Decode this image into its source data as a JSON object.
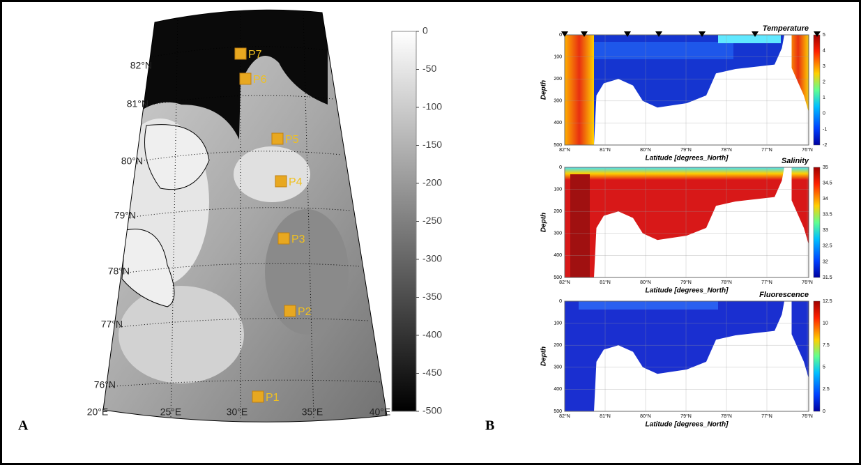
{
  "panel_a": {
    "label": "A",
    "lat_labels": [
      "82°N",
      "81°N",
      "80°N",
      "79°N",
      "78°N",
      "77°N",
      "76°N"
    ],
    "lon_labels": [
      "20°E",
      "25°E",
      "30°E",
      "35°E",
      "40°E"
    ],
    "stations": [
      "P7",
      "P6",
      "P5",
      "P4",
      "P3",
      "P2",
      "P1"
    ],
    "colorbar_ticks": [
      "0",
      "-50",
      "-100",
      "-150",
      "-200",
      "-250",
      "-300",
      "-350",
      "-400",
      "-450",
      "-500"
    ]
  },
  "panel_b": {
    "label": "B",
    "y_label": "Depth",
    "x_label": "Latitude [degrees_North]",
    "depth_ticks": [
      "0",
      "100",
      "200",
      "300",
      "400",
      "500"
    ],
    "lat_ticks": [
      "82°N",
      "81°N",
      "80°N",
      "79°N",
      "78°N",
      "77°N",
      "76°N"
    ],
    "plots": [
      {
        "title": "Temperature",
        "colorbar_ticks": [
          "5",
          "4",
          "3",
          "2",
          "1",
          "0",
          "-1",
          "-2"
        ]
      },
      {
        "title": "Salinity",
        "colorbar_ticks": [
          "35",
          "34.5",
          "34",
          "33.5",
          "33",
          "32.5",
          "32",
          "31.5"
        ]
      },
      {
        "title": "Fluorescence",
        "colorbar_ticks": [
          "12.5",
          "10",
          "7.5",
          "5",
          "2.5",
          "0"
        ]
      }
    ]
  }
}
